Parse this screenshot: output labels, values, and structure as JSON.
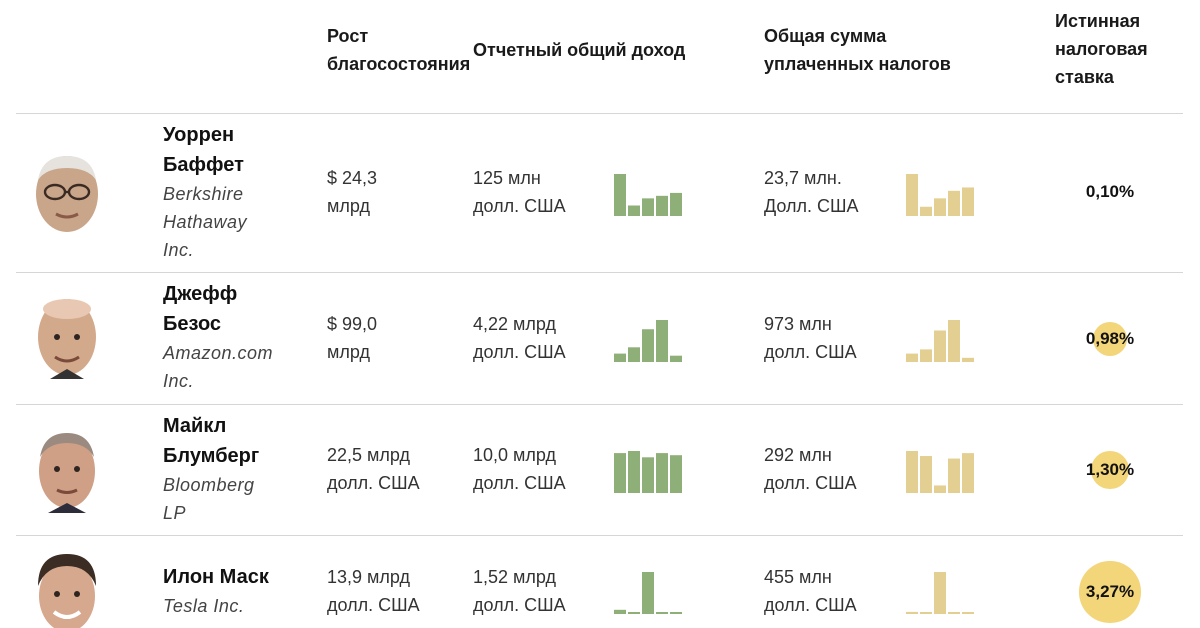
{
  "headers": {
    "growth": "Рост благосостояния",
    "income": "Отчетный общий доход",
    "taxes": "Общая сумма уплаченных налогов",
    "rate": "Истинная налоговая ставка"
  },
  "colors": {
    "income_bars": "#8faf78",
    "tax_bars": "#e3cf91",
    "rate_circle": "#f3d57a"
  },
  "chart_data": {
    "type": "table",
    "columns": [
      "Рост благосостояния",
      "Отчетный общий доход",
      "Общая сумма уплаченных налогов",
      "Истинная налоговая ставка"
    ],
    "rows": [
      {
        "name_line1": "Уоррен",
        "name_line2": "Баффет",
        "company_line1": "Berkshire",
        "company_line2": "Hathaway",
        "company_line3": "Inc.",
        "portrait": "warren-buffett-portrait",
        "growth_line1": "$ 24,3",
        "growth_line2": "млрд",
        "income_line1": "125 млн",
        "income_line2": "долл. США",
        "taxes_line1": "23,7 млн.",
        "taxes_line2": "Долл. США",
        "rate": "0,10%",
        "rate_value": 0.1,
        "income_spark": [
          1.0,
          0.25,
          0.42,
          0.48,
          0.55
        ],
        "tax_spark": [
          1.0,
          0.22,
          0.42,
          0.6,
          0.68
        ]
      },
      {
        "name_line1": "Джефф",
        "name_line2": "Безос",
        "company_line1": "Amazon.com",
        "company_line2": "Inc.",
        "company_line3": "",
        "portrait": "jeff-bezos-portrait",
        "growth_line1": "$ 99,0",
        "growth_line2": "млрд",
        "income_line1": "4,22 млрд",
        "income_line2": "долл. США",
        "taxes_line1": "973 млн",
        "taxes_line2": "долл. США",
        "rate": "0,98%",
        "rate_value": 0.98,
        "income_spark": [
          0.2,
          0.35,
          0.78,
          1.0,
          0.15
        ],
        "tax_spark": [
          0.2,
          0.3,
          0.75,
          1.0,
          0.1
        ]
      },
      {
        "name_line1": "Майкл",
        "name_line2": "Блумберг",
        "company_line1": "Bloomberg",
        "company_line2": "LP",
        "company_line3": "",
        "portrait": "michael-bloomberg-portrait",
        "growth_line1": "22,5 млрд",
        "growth_line2": "долл. США",
        "income_line1": "10,0 млрд",
        "income_line2": "долл. США",
        "taxes_line1": "292 млн",
        "taxes_line2": "долл. США",
        "rate": "1,30%",
        "rate_value": 1.3,
        "income_spark": [
          0.95,
          1.0,
          0.85,
          0.95,
          0.9
        ],
        "tax_spark": [
          1.0,
          0.88,
          0.18,
          0.82,
          0.95
        ]
      },
      {
        "name_line1": "Илон Маск",
        "name_line2": "",
        "company_line1": "Tesla Inc.",
        "company_line2": "",
        "company_line3": "",
        "portrait": "elon-musk-portrait",
        "growth_line1": "13,9 млрд",
        "growth_line2": "долл. США",
        "income_line1": "1,52 млрд",
        "income_line2": "долл. США",
        "taxes_line1": "455 млн",
        "taxes_line2": "долл. США",
        "rate": "3,27%",
        "rate_value": 3.27,
        "income_spark": [
          0.1,
          0.02,
          1.0,
          0.02,
          0.02
        ],
        "tax_spark": [
          0.05,
          0.02,
          1.0,
          0.02,
          0.02
        ]
      }
    ]
  }
}
